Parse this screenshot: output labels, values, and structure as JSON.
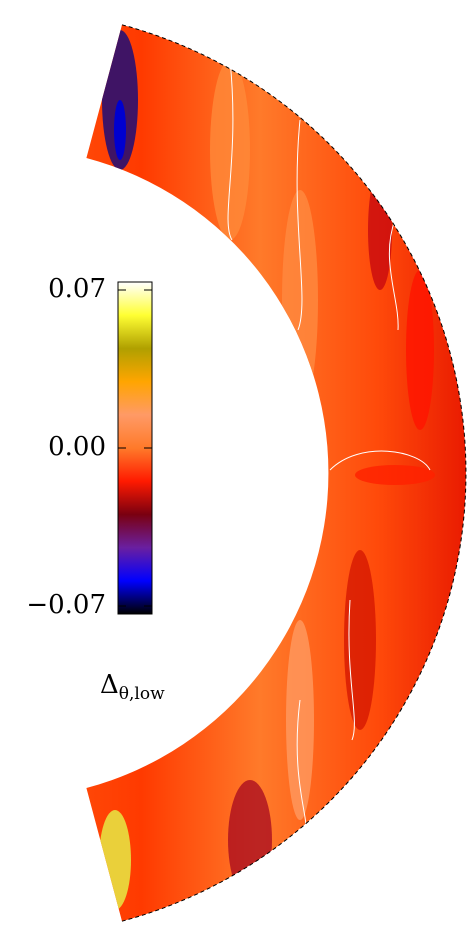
{
  "chart_data": {
    "type": "contour",
    "colorbar_label": {
      "symbol": "Δ",
      "subscript": "θ,low"
    },
    "clim": [
      -0.07,
      0.07
    ],
    "cticks": [
      {
        "value": -0.07,
        "label": "−0.07"
      },
      {
        "value": 0,
        "label": "0.00"
      },
      0.07
    ],
    "colormap": [
      "#000000",
      "#0000ff",
      "#6a1fa0",
      "#7a0010",
      "#ff1a00",
      "#ff7a2a",
      "#ff9a66",
      "#ffa500",
      "#b0a000",
      "#ffff33",
      "#ffffff"
    ]
  }
}
